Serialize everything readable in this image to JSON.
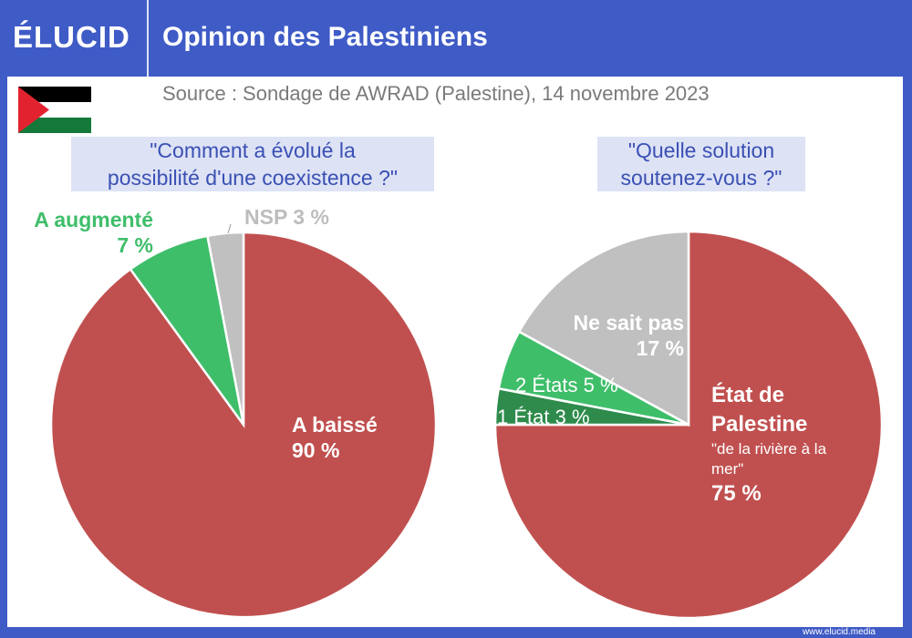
{
  "header": {
    "logo": "ÉLUCID",
    "title": "Opinion des Palestiniens"
  },
  "source": "Source : Sondage de AWRAD (Palestine), 14 novembre 2023",
  "footer": "www.elucid.media",
  "colors": {
    "frame": "#3f5bc6",
    "red": "#c0504f",
    "green": "#3fbe6a",
    "dark_green": "#2e8b4b",
    "gray": "#c0c0c0"
  },
  "chart_data": [
    {
      "type": "pie",
      "title": "\"Comment a évolué  la possibilité d'une coexistence ?\"",
      "title_lines": [
        "\"Comment a évolué  la",
        "possibilité d'une coexistence ?\""
      ],
      "slices": [
        {
          "label": "A baissé",
          "value": 90,
          "value_label": "90 %",
          "color": "#c0504f"
        },
        {
          "label": "A augmenté",
          "value": 7,
          "value_label": "7 %",
          "color": "#3fbe6a"
        },
        {
          "label": "NSP",
          "value": 3,
          "value_label": "NSP 3 %",
          "color": "#c0c0c0"
        }
      ]
    },
    {
      "type": "pie",
      "title": "\"Quelle solution soutenez-vous ?\"",
      "title_lines": [
        "\"Quelle solution",
        "soutenez-vous ?\""
      ],
      "slices": [
        {
          "label": "État de Palestine",
          "sublabel": "\"de la rivière à la mer\"",
          "value": 75,
          "value_label": "75 %",
          "color": "#c0504f"
        },
        {
          "label": "1 État",
          "value": 3,
          "value_label": "1 État 3 %",
          "color": "#2e8b4b"
        },
        {
          "label": "2 États",
          "value": 5,
          "value_label": "2 États 5 %",
          "color": "#3fbe6a"
        },
        {
          "label": "Ne sait pas",
          "value": 17,
          "value_label": "17 %",
          "color": "#c0c0c0"
        }
      ]
    }
  ]
}
